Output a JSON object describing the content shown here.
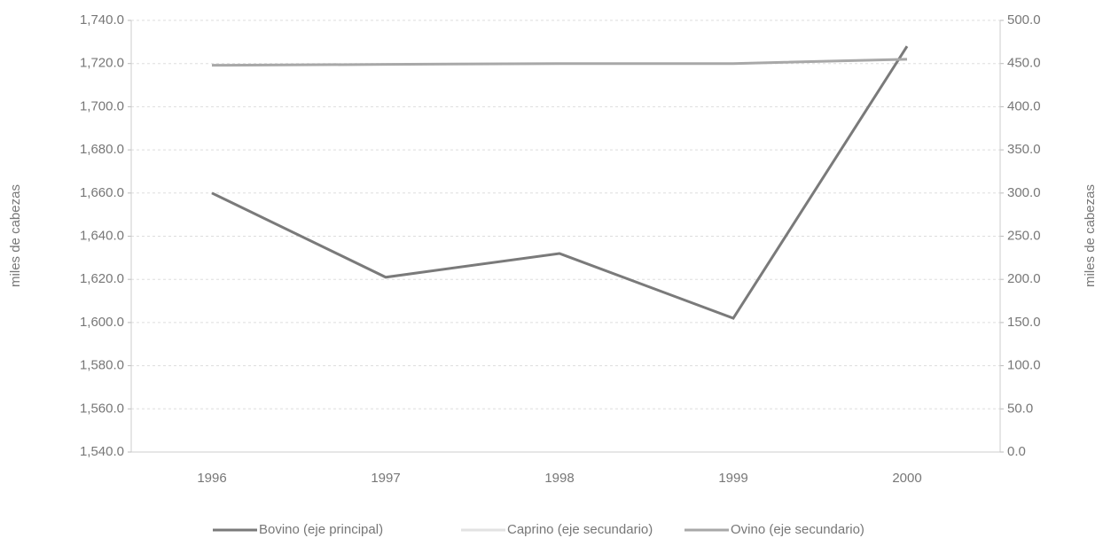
{
  "chart_data": {
    "type": "line",
    "categories": [
      "1996",
      "1997",
      "1998",
      "1999",
      "2000"
    ],
    "series": [
      {
        "name": "Bovino (eje principal)",
        "color": "#7a7a7a",
        "values": [
          1660,
          1621,
          1632,
          1602,
          1728
        ]
      },
      {
        "name": "Caprino (eje secundario)",
        "color": "#e2e2e2",
        "axis": "y2",
        "values": [
          null,
          null,
          null,
          null,
          null
        ]
      },
      {
        "name": "Ovino (eje secundario)",
        "color": "#a8a8a8",
        "axis": "y2",
        "values": [
          448,
          449,
          450,
          450,
          455
        ]
      }
    ],
    "ylabel": "miles de cabezas",
    "y2label": "miles de cabezas",
    "ylim": [
      1540,
      1740
    ],
    "yticks": [
      {
        "value": 1540,
        "label": "1,540.0"
      },
      {
        "value": 1560,
        "label": "1,560.0"
      },
      {
        "value": 1580,
        "label": "1,580.0"
      },
      {
        "value": 1600,
        "label": "1,600.0"
      },
      {
        "value": 1620,
        "label": "1,620.0"
      },
      {
        "value": 1640,
        "label": "1,640.0"
      },
      {
        "value": 1660,
        "label": "1,660.0"
      },
      {
        "value": 1680,
        "label": "1,680.0"
      },
      {
        "value": 1700,
        "label": "1,700.0"
      },
      {
        "value": 1720,
        "label": "1,720.0"
      },
      {
        "value": 1740,
        "label": "1,740.0"
      }
    ],
    "y2lim": [
      0,
      500
    ],
    "y2ticks": [
      {
        "value": 0,
        "label": "0.0"
      },
      {
        "value": 50,
        "label": "50.0"
      },
      {
        "value": 100,
        "label": "100.0"
      },
      {
        "value": 150,
        "label": "150.0"
      },
      {
        "value": 200,
        "label": "200.0"
      },
      {
        "value": 250,
        "label": "250.0"
      },
      {
        "value": 300,
        "label": "300.0"
      },
      {
        "value": 350,
        "label": "350.0"
      },
      {
        "value": 400,
        "label": "400.0"
      },
      {
        "value": 450,
        "label": "450.0"
      },
      {
        "value": 500,
        "label": "500.0"
      }
    ],
    "grid": true,
    "legend": "bottom"
  }
}
